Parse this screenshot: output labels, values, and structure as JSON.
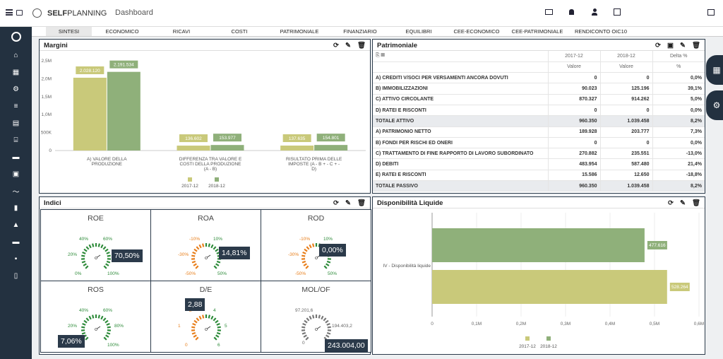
{
  "app": {
    "brand_bold": "SELF",
    "brand_light": "PLANNING",
    "page": "Dashboard"
  },
  "tabs": [
    "SINTESI",
    "ECONOMICO",
    "RICAVI",
    "COSTI",
    "PATRIMONIALE",
    "FINANZIARIO",
    "EQUILIBRI",
    "CEE-ECONOMICO",
    "CEE-PATRIMONIALE",
    "RENDICONTO OIC10"
  ],
  "margini": {
    "title": "Margini",
    "chart_data": {
      "type": "bar",
      "categories": [
        "A) VALORE DELLA PRODUZIONE",
        "DIFFERENZA TRA VALORE E COSTI DELLA PRODUZIONE (A - B)",
        "RISULTATO PRIMA DELLE IMPOSTE (A - B + - C + - D)"
      ],
      "series": [
        {
          "name": "2017-12",
          "color": "#c9c97a",
          "values": [
            2028120,
            136602,
            137635
          ],
          "labels": [
            "2.028.120",
            "136.602",
            "137.635"
          ]
        },
        {
          "name": "2018-12",
          "color": "#8fb07a",
          "values": [
            2191534,
            153977,
            154801
          ],
          "labels": [
            "2.191.534",
            "153.977",
            "154.801"
          ]
        }
      ],
      "ylim": [
        0,
        2500000
      ],
      "ticks": [
        "0",
        "500K",
        "1,0M",
        "1,5M",
        "2,0M",
        "2,5M"
      ]
    }
  },
  "patrimoniale": {
    "title": "Patrimoniale",
    "headers": {
      "y1": "2017-12",
      "y2": "2018-12",
      "delta": "Delta %",
      "sub1": "Valore",
      "sub2": "Valore",
      "sub3": "%"
    },
    "rows": [
      {
        "label": "A) CREDITI V/SOCI PER VERSAMENTI ANCORA DOVUTI",
        "v1": "0",
        "v2": "0",
        "d": "0,0%",
        "tot": false
      },
      {
        "label": "B) IMMOBILIZZAZIONI",
        "v1": "90.023",
        "v2": "125.196",
        "d": "39,1%",
        "tot": false
      },
      {
        "label": "C) ATTIVO CIRCOLANTE",
        "v1": "870.327",
        "v2": "914.262",
        "d": "5,0%",
        "tot": false
      },
      {
        "label": "D) RATEI E RISCONTI",
        "v1": "0",
        "v2": "0",
        "d": "0,0%",
        "tot": false
      },
      {
        "label": "TOTALE ATTIVO",
        "v1": "960.350",
        "v2": "1.039.458",
        "d": "8,2%",
        "tot": true
      },
      {
        "label": "A) PATRIMONIO NETTO",
        "v1": "189.928",
        "v2": "203.777",
        "d": "7,3%",
        "tot": false
      },
      {
        "label": "B) FONDI PER RISCHI ED ONERI",
        "v1": "0",
        "v2": "0",
        "d": "0,0%",
        "tot": false
      },
      {
        "label": "C) TRATTAMENTO DI FINE RAPPORTO DI LAVORO SUBORDINATO",
        "v1": "270.882",
        "v2": "235.551",
        "d": "-13,0%",
        "tot": false
      },
      {
        "label": "D) DEBITI",
        "v1": "483.954",
        "v2": "587.480",
        "d": "21,4%",
        "tot": false
      },
      {
        "label": "E) RATEI E RISCONTI",
        "v1": "15.586",
        "v2": "12.650",
        "d": "-18,8%",
        "tot": false
      },
      {
        "label": "TOTALE PASSIVO",
        "v1": "960.350",
        "v2": "1.039.458",
        "d": "8,2%",
        "tot": true
      }
    ]
  },
  "indici": {
    "title": "Indici",
    "gauges": [
      {
        "name": "ROE",
        "value": "70,50%",
        "labels": [
          "40%",
          "60%",
          "20%",
          "80%",
          "0%",
          "100%"
        ],
        "scheme": "green"
      },
      {
        "name": "ROA",
        "value": "14,81%",
        "labels": [
          "-10%",
          "10%",
          "-30%",
          "30%",
          "-50%",
          "50%"
        ],
        "scheme": "mixed"
      },
      {
        "name": "ROD",
        "value": "0,00%",
        "labels": [
          "-10%",
          "10%",
          "-30%",
          "30%",
          "-50%",
          "50%"
        ],
        "scheme": "mixed"
      },
      {
        "name": "ROS",
        "value": "7,06%",
        "labels": [
          "40%",
          "60%",
          "20%",
          "80%",
          "0%",
          "100%"
        ],
        "scheme": "green"
      },
      {
        "name": "D/E",
        "value": "2,88",
        "labels": [
          "2",
          "4",
          "1",
          "5",
          "0",
          "6"
        ],
        "scheme": "mixed2"
      },
      {
        "name": "MOL/OF",
        "value": "243.004,00",
        "labels": [
          "97.201,6",
          "",
          "",
          "194.403,2",
          "0",
          ""
        ],
        "scheme": "gray"
      }
    ]
  },
  "liquide": {
    "title": "Disponibilità Liquide",
    "chart_data": {
      "type": "bar",
      "categories": [
        "IV - Disponibilità liquide"
      ],
      "series": [
        {
          "name": "2018-12",
          "color": "#8fb07a",
          "values": [
            477616
          ],
          "labels": [
            "477.616"
          ]
        },
        {
          "name": "2017-12",
          "color": "#c9c97a",
          "values": [
            528264
          ],
          "labels": [
            "528.264"
          ]
        }
      ],
      "xlim": [
        0,
        600000
      ],
      "ticks": [
        "0",
        "0,1M",
        "0,2M",
        "0,3M",
        "0,4M",
        "0,5M",
        "0,6M"
      ],
      "legend": [
        "2017-12",
        "2018-12"
      ]
    }
  },
  "icons": {
    "sidebar": [
      "home-icon",
      "dashboard-icon",
      "gear-icon",
      "list-icon",
      "clipboard-icon",
      "bank-icon",
      "briefcase-icon",
      "toolbox-icon",
      "trend-icon",
      "barchart-icon",
      "warning-icon",
      "briefcase2-icon",
      "save-icon",
      "doc-icon"
    ]
  }
}
